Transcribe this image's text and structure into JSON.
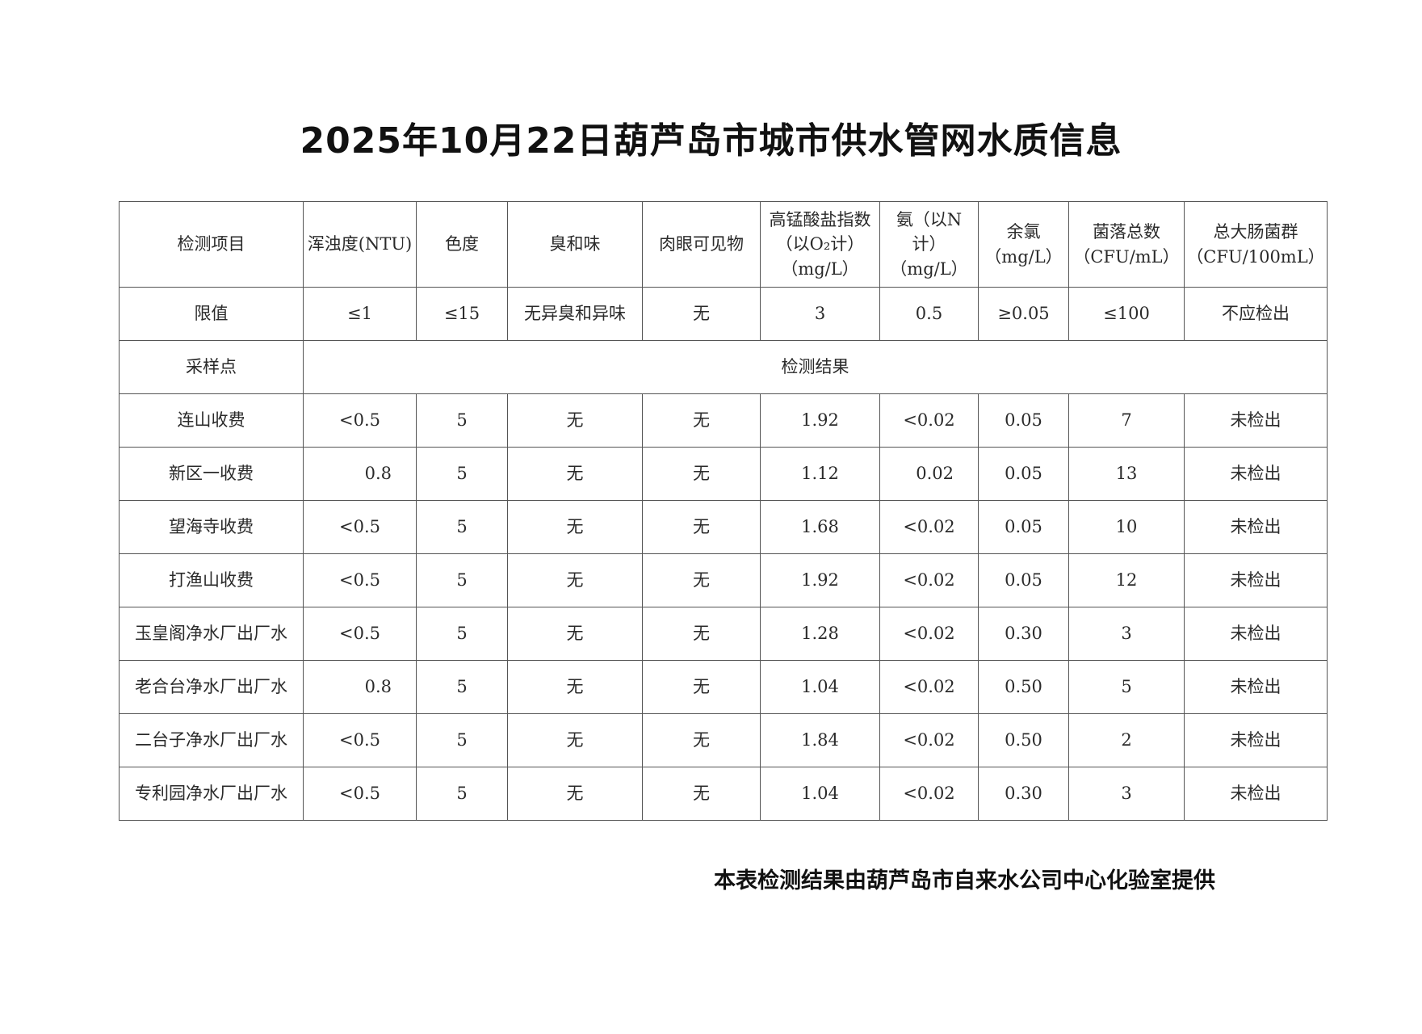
{
  "title": "2025年10月22日葫芦岛市城市供水管网水质信息",
  "headers": [
    "检测项目",
    "浑浊度(NTU)",
    "色度",
    "臭和味",
    "肉眼可见物",
    "高锰酸盐指数\n（以O₂计）\n（mg/L）",
    "氨（以N计）\n（mg/L）",
    "余氯\n（mg/L）",
    "菌落总数\n（CFU/mL）",
    "总大肠菌群\n（CFU/100mL）"
  ],
  "limits": {
    "label": "限值",
    "values": [
      "≤1",
      "≤15",
      "无异臭和异味",
      "无",
      "3",
      "0.5",
      "≥0.05",
      "≤100",
      "不应检出"
    ]
  },
  "section": {
    "label": "采样点",
    "results_label": "检测结果"
  },
  "rows": [
    {
      "site": "连山收费",
      "values": [
        "<0.5",
        "5",
        "无",
        "无",
        "1.92",
        "<0.02",
        "0.05",
        "7",
        "未检出"
      ]
    },
    {
      "site": "新区一收费",
      "values": [
        "0.8",
        "5",
        "无",
        "无",
        "1.12",
        "0.02",
        "0.05",
        "13",
        "未检出"
      ]
    },
    {
      "site": "望海寺收费",
      "values": [
        "<0.5",
        "5",
        "无",
        "无",
        "1.68",
        "<0.02",
        "0.05",
        "10",
        "未检出"
      ]
    },
    {
      "site": "打渔山收费",
      "values": [
        "<0.5",
        "5",
        "无",
        "无",
        "1.92",
        "<0.02",
        "0.05",
        "12",
        "未检出"
      ]
    },
    {
      "site": "玉皇阁净水厂出厂水",
      "values": [
        "<0.5",
        "5",
        "无",
        "无",
        "1.28",
        "<0.02",
        "0.30",
        "3",
        "未检出"
      ]
    },
    {
      "site": "老合台净水厂出厂水",
      "values": [
        "0.8",
        "5",
        "无",
        "无",
        "1.04",
        "<0.02",
        "0.50",
        "5",
        "未检出"
      ]
    },
    {
      "site": "二台子净水厂出厂水",
      "values": [
        "<0.5",
        "5",
        "无",
        "无",
        "1.84",
        "<0.02",
        "0.50",
        "2",
        "未检出"
      ]
    },
    {
      "site": "专利园净水厂出厂水",
      "values": [
        "<0.5",
        "5",
        "无",
        "无",
        "1.04",
        "<0.02",
        "0.30",
        "3",
        "未检出"
      ]
    }
  ],
  "footer": "本表检测结果由葫芦岛市自来水公司中心化验室提供"
}
